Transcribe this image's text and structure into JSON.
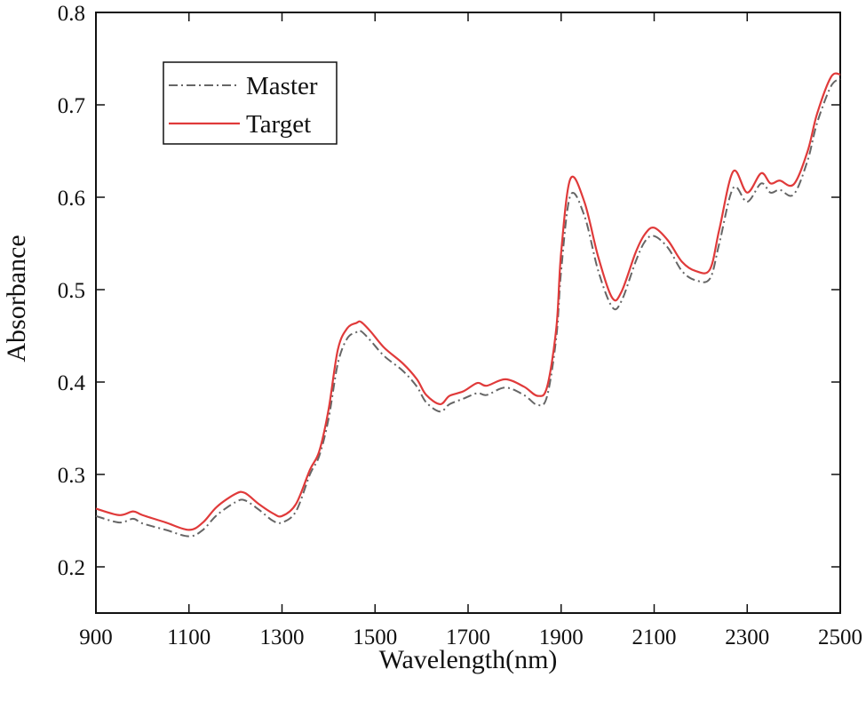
{
  "chart_data": {
    "type": "line",
    "title": "",
    "xlabel": "Wavelength(nm)",
    "ylabel": "Absorbance",
    "xlim": [
      900,
      2500
    ],
    "ylim": [
      0.15,
      0.8
    ],
    "xticks": [
      900,
      1100,
      1300,
      1500,
      1700,
      1900,
      2100,
      2300,
      2500
    ],
    "xtick_labels": [
      "900",
      "1100",
      "1300",
      "1500",
      "1700",
      "1900",
      "2100",
      "2300",
      "2500"
    ],
    "yticks": [
      0.2,
      0.3,
      0.4,
      0.5,
      0.6,
      0.7,
      0.8
    ],
    "ytick_labels": [
      "0.2",
      "0.3",
      "0.4",
      "0.5",
      "0.6",
      "0.7",
      "0.8"
    ],
    "grid": false,
    "legend_position": "top-left",
    "series": [
      {
        "name": "Master",
        "color": "#666666",
        "style": "dash-dot",
        "x": [
          900,
          950,
          980,
          1000,
          1050,
          1100,
          1130,
          1160,
          1200,
          1220,
          1250,
          1280,
          1300,
          1330,
          1360,
          1380,
          1400,
          1420,
          1440,
          1460,
          1470,
          1490,
          1520,
          1560,
          1590,
          1610,
          1640,
          1660,
          1690,
          1720,
          1740,
          1780,
          1820,
          1850,
          1870,
          1890,
          1900,
          1920,
          1950,
          1980,
          2010,
          2030,
          2060,
          2080,
          2100,
          2130,
          2160,
          2190,
          2220,
          2240,
          2270,
          2300,
          2330,
          2350,
          2370,
          2400,
          2430,
          2450,
          2480,
          2500
        ],
        "values": [
          0.255,
          0.248,
          0.252,
          0.247,
          0.24,
          0.233,
          0.24,
          0.256,
          0.27,
          0.272,
          0.262,
          0.25,
          0.248,
          0.26,
          0.3,
          0.32,
          0.36,
          0.42,
          0.447,
          0.454,
          0.455,
          0.445,
          0.428,
          0.412,
          0.395,
          0.378,
          0.368,
          0.376,
          0.382,
          0.388,
          0.386,
          0.394,
          0.386,
          0.375,
          0.385,
          0.45,
          0.52,
          0.602,
          0.58,
          0.52,
          0.481,
          0.488,
          0.53,
          0.552,
          0.558,
          0.545,
          0.52,
          0.51,
          0.512,
          0.55,
          0.61,
          0.595,
          0.615,
          0.605,
          0.608,
          0.603,
          0.64,
          0.68,
          0.72,
          0.728
        ]
      },
      {
        "name": "Target",
        "color": "#e03a3a",
        "style": "solid",
        "x": [
          900,
          950,
          980,
          1000,
          1050,
          1100,
          1130,
          1160,
          1200,
          1220,
          1250,
          1280,
          1300,
          1330,
          1360,
          1380,
          1400,
          1420,
          1440,
          1460,
          1470,
          1490,
          1520,
          1560,
          1590,
          1610,
          1640,
          1660,
          1690,
          1720,
          1740,
          1780,
          1820,
          1850,
          1870,
          1890,
          1900,
          1920,
          1950,
          1980,
          2010,
          2030,
          2060,
          2080,
          2100,
          2130,
          2160,
          2190,
          2220,
          2240,
          2270,
          2300,
          2330,
          2350,
          2370,
          2400,
          2430,
          2450,
          2480,
          2500
        ],
        "values": [
          0.263,
          0.256,
          0.26,
          0.256,
          0.248,
          0.24,
          0.248,
          0.265,
          0.279,
          0.28,
          0.268,
          0.258,
          0.255,
          0.268,
          0.305,
          0.325,
          0.37,
          0.435,
          0.458,
          0.464,
          0.465,
          0.455,
          0.437,
          0.42,
          0.403,
          0.386,
          0.376,
          0.385,
          0.39,
          0.399,
          0.396,
          0.403,
          0.395,
          0.385,
          0.395,
          0.46,
          0.54,
          0.62,
          0.595,
          0.535,
          0.491,
          0.498,
          0.54,
          0.56,
          0.567,
          0.553,
          0.53,
          0.52,
          0.522,
          0.565,
          0.628,
          0.605,
          0.626,
          0.615,
          0.618,
          0.614,
          0.65,
          0.69,
          0.73,
          0.733
        ]
      }
    ]
  }
}
